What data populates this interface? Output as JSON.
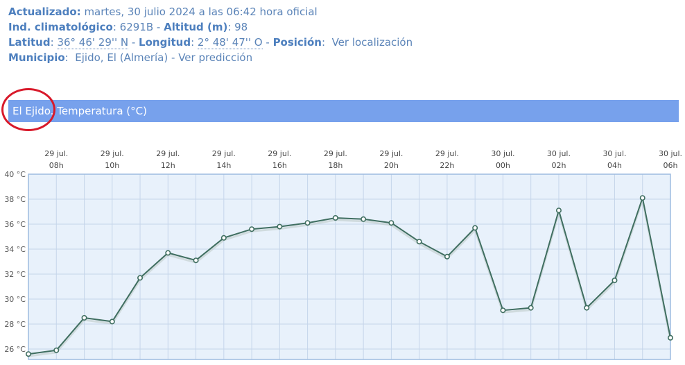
{
  "station": {
    "updated_label": "Actualizado:",
    "updated_value": "martes, 30 julio 2024 a las 06:42 hora oficial",
    "climato_label": "Ind. climatológico",
    "climato_value": ": 6291B",
    "sep1": " - ",
    "altitude_label": "Altitud (m)",
    "altitude_value": ": 98",
    "lat_label": "Latitud",
    "lat_colon": ":",
    "lat_value": "36° 46' 29'' N",
    "sep2": " - ",
    "lon_label": "Longitud",
    "lon_colon": ":",
    "lon_value": "2° 48' 47'' O",
    "sep3": " - ",
    "pos_label": "Posición",
    "pos_colon": ":",
    "pos_link": "Ver localización",
    "muni_label": "Municipio",
    "muni_colon": ":",
    "muni_value": "Ejido, El (Almería)",
    "muni_sep": " - ",
    "muni_link": "Ver predicción"
  },
  "chart_title": {
    "place": "El Ejido",
    "rest": ". Temperatura (°C)"
  },
  "chart_data": {
    "type": "line",
    "title": "El Ejido. Temperatura (°C)",
    "x_tick_labels": [
      {
        "day": "29 jul.",
        "hour": "08h"
      },
      {
        "day": "29 jul.",
        "hour": "10h"
      },
      {
        "day": "29 jul.",
        "hour": "12h"
      },
      {
        "day": "29 jul.",
        "hour": "14h"
      },
      {
        "day": "29 jul.",
        "hour": "16h"
      },
      {
        "day": "29 jul.",
        "hour": "18h"
      },
      {
        "day": "29 jul.",
        "hour": "20h"
      },
      {
        "day": "29 jul.",
        "hour": "22h"
      },
      {
        "day": "30 jul.",
        "hour": "00h"
      },
      {
        "day": "30 jul.",
        "hour": "02h"
      },
      {
        "day": "30 jul.",
        "hour": "04h"
      },
      {
        "day": "30 jul.",
        "hour": "06h"
      }
    ],
    "x": [
      "29 jul. 07h",
      "29 jul. 08h",
      "29 jul. 09h",
      "29 jul. 10h",
      "29 jul. 11h",
      "29 jul. 12h",
      "29 jul. 13h",
      "29 jul. 14h",
      "29 jul. 15h",
      "29 jul. 16h",
      "29 jul. 17h",
      "29 jul. 18h",
      "29 jul. 19h",
      "29 jul. 20h",
      "29 jul. 21h",
      "29 jul. 22h",
      "29 jul. 23h",
      "30 jul. 00h",
      "30 jul. 01h",
      "30 jul. 02h",
      "30 jul. 03h",
      "30 jul. 04h",
      "30 jul. 05h",
      "30 jul. 06h"
    ],
    "values": [
      25.6,
      25.9,
      28.5,
      28.2,
      31.7,
      33.7,
      33.1,
      34.9,
      35.6,
      35.8,
      36.1,
      36.5,
      36.4,
      36.1,
      34.6,
      33.4,
      35.7,
      29.1,
      29.3,
      37.1,
      29.3,
      31.5,
      38.1,
      26.9
    ],
    "y_ticks": [
      "26 °C",
      "28 °C",
      "30 °C",
      "32 °C",
      "34 °C",
      "36 °C",
      "38 °C",
      "40 °C"
    ],
    "ylim": [
      25.5,
      40
    ],
    "grid": true,
    "colors": {
      "line": "#3f6e60",
      "plot_bg": "#e8f1fb",
      "grid": "#c5d5ea",
      "frame": "#9dbce0",
      "title_bar": "#77a1ec"
    }
  }
}
